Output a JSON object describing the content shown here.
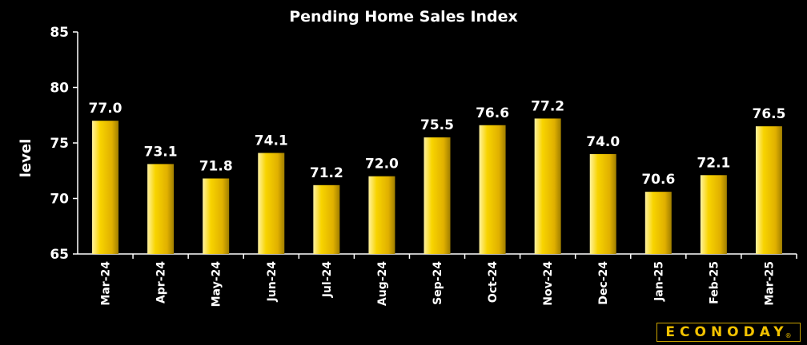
{
  "chart_data": {
    "type": "bar",
    "title": "Pending Home Sales Index",
    "xlabel": "",
    "ylabel": "level",
    "ylim": [
      65,
      85
    ],
    "yticks": [
      "85",
      "80",
      "75",
      "70",
      "65"
    ],
    "ytick_values": [
      85,
      80,
      75,
      70,
      65
    ],
    "categories": [
      "Mar-24",
      "Apr-24",
      "May-24",
      "Jun-24",
      "Jul-24",
      "Aug-24",
      "Sep-24",
      "Oct-24",
      "Nov-24",
      "Dec-24",
      "Jan-25",
      "Feb-25",
      "Mar-25"
    ],
    "values": [
      77.0,
      73.1,
      71.8,
      74.1,
      71.2,
      72.0,
      75.5,
      76.6,
      77.2,
      74.0,
      70.6,
      72.1,
      76.5
    ],
    "value_labels": [
      "77.0",
      "73.1",
      "71.8",
      "74.1",
      "71.2",
      "72.0",
      "75.5",
      "76.6",
      "77.2",
      "74.0",
      "70.6",
      "72.1",
      "76.5"
    ],
    "grid": false,
    "colors": {
      "background": "#000000",
      "bar_light": "#fff2a0",
      "bar_mid": "#f5c800",
      "bar_dark": "#b08a00",
      "axis": "#ffffff",
      "text": "#ffffff"
    }
  },
  "logo": {
    "text": "ECONODAY",
    "mark": "®",
    "color": "#f2c200"
  }
}
